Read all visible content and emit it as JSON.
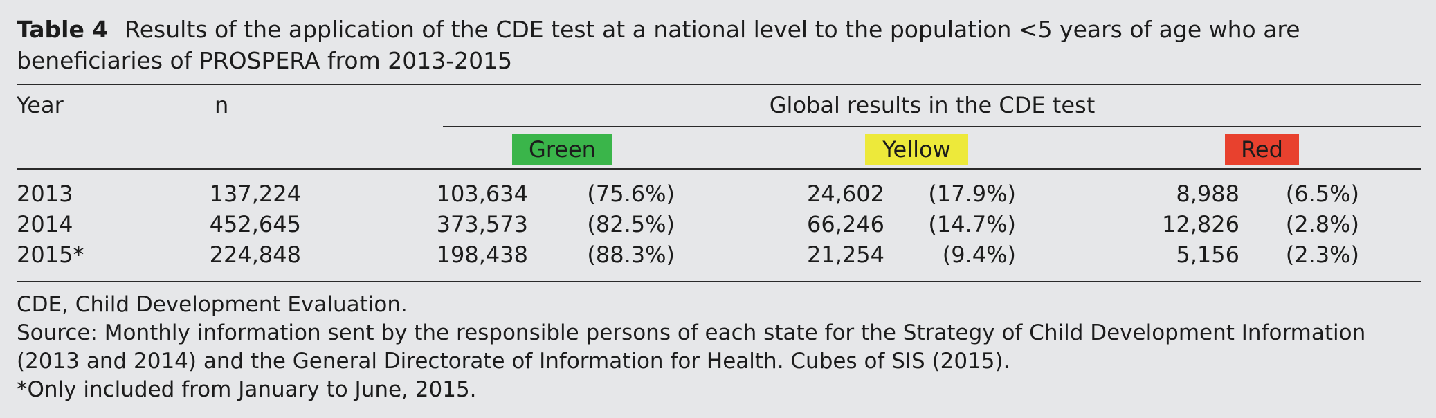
{
  "caption": {
    "label": "Table 4",
    "text": "Results of the application of the CDE test at a national level to the population <5 years of age who are beneficiaries of PROSPERA from 2013-2015"
  },
  "header": {
    "year": "Year",
    "n": "n",
    "group": "Global results in the CDE test",
    "green": "Green",
    "yellow": "Yellow",
    "red": "Red"
  },
  "colors": {
    "green": "#3ab54a",
    "yellow": "#ede93a",
    "red": "#e8412e"
  },
  "rows": [
    {
      "year": "2013",
      "n": "137,224",
      "green_n": "103,634",
      "green_pct": "(75.6%)",
      "yellow_n": "24,602",
      "yellow_pct": "(17.9%)",
      "red_n": "8,988",
      "red_pct": "(6.5%)"
    },
    {
      "year": "2014",
      "n": "452,645",
      "green_n": "373,573",
      "green_pct": "(82.5%)",
      "yellow_n": "66,246",
      "yellow_pct": "(14.7%)",
      "red_n": "12,826",
      "red_pct": "(2.8%)"
    },
    {
      "year": "2015*",
      "n": "224,848",
      "green_n": "198,438",
      "green_pct": "(88.3%)",
      "yellow_n": "21,254",
      "yellow_pct": "(9.4%)",
      "red_n": "5,156",
      "red_pct": "(2.3%)"
    }
  ],
  "notes": {
    "abbrev": "CDE, Child Development Evaluation.",
    "source": "Source: Monthly information sent by the responsible persons of each state for the Strategy of Child Development Information (2013 and 2014) and the General Directorate of Information for Health. Cubes of SIS (2015).",
    "footnote": "*Only included from January to June, 2015."
  }
}
